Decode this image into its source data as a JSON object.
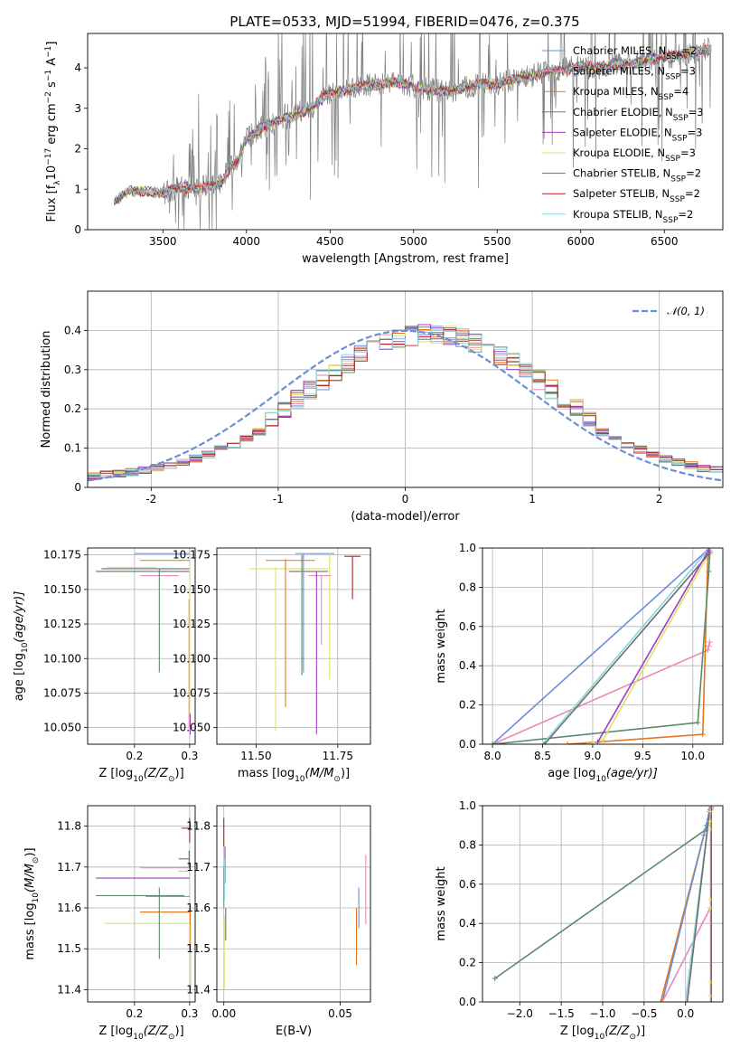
{
  "title": "PLATE=0533, MJD=51994, FIBERID=0476, z=0.375",
  "colors": {
    "chabrier_miles": "#6a8fd6",
    "salpeter_miles": "#e889b8",
    "kroupa_miles": "#e8741a",
    "chabrier_elodie": "#5c8a68",
    "salpeter_elodie": "#a23bc2",
    "kroupa_elodie": "#d9e466",
    "chabrier_stelib": "#6e6e6e",
    "salpeter_stelib": "#b81d24",
    "kroupa_stelib": "#89d7e0",
    "data": "#808080",
    "normal": "#6a8fd6"
  },
  "chart_data": [
    {
      "id": "spectrum",
      "type": "line",
      "title": "PLATE=0533, MJD=51994, FIBERID=0476, z=0.375",
      "xlabel": "wavelength [Angstrom, rest frame]",
      "ylabel_parts": [
        "Flux [f",
        "λ",
        "10",
        "−17",
        " erg cm",
        "−2",
        " s",
        "−1",
        " A",
        "−1",
        "]"
      ],
      "xlim": [
        3050,
        6850
      ],
      "ylim": [
        0,
        4.85
      ],
      "xticks": [
        3500,
        4000,
        4500,
        5000,
        5500,
        6000,
        6500
      ],
      "yticks": [
        0,
        1,
        2,
        3,
        4
      ],
      "grid": false,
      "legend_position": "top-right",
      "data_range": [
        3210,
        6780
      ],
      "continuum": {
        "x": [
          3210,
          3300,
          3400,
          3500,
          3600,
          3700,
          3800,
          3850,
          3900,
          3950,
          4000,
          4100,
          4200,
          4300,
          4400,
          4500,
          4600,
          4700,
          4800,
          4900,
          5000,
          5100,
          5200,
          5300,
          5400,
          5500,
          5600,
          5700,
          5800,
          5900,
          6000,
          6100,
          6200,
          6300,
          6400,
          6500,
          6600,
          6700,
          6780
        ],
        "y": [
          0.7,
          0.95,
          0.95,
          0.9,
          1.05,
          1.0,
          1.1,
          1.15,
          1.55,
          1.7,
          2.25,
          2.55,
          2.7,
          2.85,
          3.05,
          3.4,
          3.45,
          3.55,
          3.6,
          3.65,
          3.55,
          3.45,
          3.4,
          3.5,
          3.6,
          3.6,
          3.7,
          3.8,
          3.9,
          3.95,
          4.05,
          4.0,
          4.1,
          4.1,
          4.2,
          4.25,
          4.3,
          4.4,
          4.45
        ]
      },
      "legend": [
        {
          "label": "Chabrier MILES, N",
          "sub": "SSP",
          "tail": "=2",
          "color": "#6a8fd6"
        },
        {
          "label": "Salpeter MILES, N",
          "sub": "SSP",
          "tail": "=3",
          "color": "#e889b8"
        },
        {
          "label": "Kroupa MILES, N",
          "sub": "SSP",
          "tail": "=4",
          "color": "#e8741a"
        },
        {
          "label": "Chabrier ELODIE, N",
          "sub": "SSP",
          "tail": "=3",
          "color": "#5c8a68"
        },
        {
          "label": "Salpeter ELODIE, N",
          "sub": "SSP",
          "tail": "=3",
          "color": "#a23bc2"
        },
        {
          "label": "Kroupa ELODIE, N",
          "sub": "SSP",
          "tail": "=3",
          "color": "#d9e466"
        },
        {
          "label": "Chabrier STELIB, N",
          "sub": "SSP",
          "tail": "=2",
          "color": "#6e6e6e"
        },
        {
          "label": "Salpeter STELIB, N",
          "sub": "SSP",
          "tail": "=2",
          "color": "#b81d24"
        },
        {
          "label": "Kroupa STELIB, N",
          "sub": "SSP",
          "tail": "=2",
          "color": "#89d7e0"
        }
      ]
    },
    {
      "id": "residuals",
      "type": "line",
      "xlabel": "(data-model)/error",
      "ylabel": "Normed distribution",
      "xlim": [
        -2.5,
        2.5
      ],
      "ylim": [
        0,
        0.5
      ],
      "xticks": [
        -2,
        -1,
        0,
        1,
        2
      ],
      "yticks": [
        0.0,
        0.1,
        0.2,
        0.3,
        0.4
      ],
      "grid": true,
      "legend_position": "top-right",
      "legend_label": "𝒩(0, 1)",
      "normal_mean": 0,
      "normal_sigma": 1,
      "bin_width": 0.1,
      "hist_template": [
        0.018,
        0.018,
        0.022,
        0.025,
        0.03,
        0.038,
        0.05,
        0.06,
        0.07,
        0.08,
        0.09,
        0.1,
        0.115,
        0.13,
        0.15,
        0.165,
        0.18,
        0.2,
        0.22,
        0.24,
        0.26,
        0.28,
        0.3,
        0.32,
        0.33,
        0.35,
        0.36,
        0.37,
        0.38,
        0.39,
        0.4,
        0.42,
        0.41,
        0.4,
        0.41,
        0.4,
        0.39,
        0.4,
        0.41,
        0.4,
        0.38,
        0.37,
        0.35,
        0.33,
        0.32,
        0.31,
        0.29,
        0.27,
        0.25,
        0.22,
        0.2,
        0.18,
        0.16,
        0.14,
        0.13,
        0.12,
        0.1,
        0.09,
        0.08,
        0.065,
        0.06,
        0.05,
        0.045,
        0.04,
        0.035,
        0.03,
        0.028,
        0.025,
        0.02,
        0.018,
        0.015,
        0.013,
        0.012,
        0.011,
        0.01,
        0.01,
        0.009,
        0.008,
        0.008,
        0.007,
        0.006,
        0.006,
        0.005,
        0.005,
        0.004,
        0.004,
        0.004,
        0.003,
        0.003,
        0.003
      ]
    },
    {
      "id": "z-age",
      "type": "scatter",
      "xlabel_parts": [
        "Z [log",
        "10",
        "(Z/Z",
        "⊙",
        ")]"
      ],
      "ylabel_parts": [
        "age  [log",
        "10",
        "(age/yr)]"
      ],
      "xlim": [
        0.115,
        0.31
      ],
      "ylim": [
        10.038,
        10.18
      ],
      "xticks": [
        0.2,
        0.3
      ],
      "xtick_labels": [
        "0.2",
        "0.3"
      ],
      "yticks": [
        10.05,
        10.075,
        10.1,
        10.125,
        10.15,
        10.175
      ],
      "ytick_labels": [
        "10.050",
        "10.075",
        "10.100",
        "10.125",
        "10.150",
        "10.175"
      ],
      "grid": true,
      "hbars": [
        {
          "color": "#6a8fd6",
          "x0": 0.2,
          "x1": 0.3,
          "y": 10.176
        },
        {
          "color": "#e8741a",
          "x0": 0.21,
          "x1": 0.3,
          "y": 10.171
        },
        {
          "color": "#6e6e6e",
          "x0": 0.14,
          "x1": 0.3,
          "y": 10.165
        },
        {
          "color": "#a23bc2",
          "x0": 0.13,
          "x1": 0.3,
          "y": 10.163
        },
        {
          "color": "#5c8a68",
          "x0": 0.13,
          "x1": 0.29,
          "y": 10.163
        },
        {
          "color": "#e889b8",
          "x0": 0.21,
          "x1": 0.28,
          "y": 10.16
        },
        {
          "color": "#d9e466",
          "x0": 0.15,
          "x1": 0.24,
          "y": 10.166
        }
      ],
      "vbars": [
        {
          "color": "#5c8a68",
          "x": 0.245,
          "y0": 10.09,
          "y1": 10.165
        },
        {
          "color": "#e8741a",
          "x": 0.299,
          "y0": 10.05,
          "y1": 10.143
        },
        {
          "color": "#d9e466",
          "x": 0.3,
          "y0": 10.05,
          "y1": 10.17
        },
        {
          "color": "#a23bc2",
          "x": 0.301,
          "y0": 10.045,
          "y1": 10.06
        }
      ]
    },
    {
      "id": "mass-age",
      "type": "scatter",
      "xlabel_parts": [
        "mass [log",
        "10",
        "(M/M",
        "⊙",
        ")]"
      ],
      "xlim": [
        11.38,
        11.85
      ],
      "ylim": [
        10.038,
        10.18
      ],
      "xticks": [
        11.5,
        11.75
      ],
      "xtick_labels": [
        "11.50",
        "11.75"
      ],
      "yticks": [
        10.05,
        10.075,
        10.1,
        10.125,
        10.15,
        10.175
      ],
      "ytick_labels": [
        "10.050",
        "10.075",
        "10.100",
        "10.125",
        "10.150",
        "10.175"
      ],
      "grid": true,
      "hbars": [
        {
          "color": "#6a8fd6",
          "x0": 11.62,
          "x1": 11.74,
          "y": 10.176
        },
        {
          "color": "#b81d24",
          "x0": 11.77,
          "x1": 11.82,
          "y": 10.174
        },
        {
          "color": "#e8741a",
          "x0": 11.53,
          "x1": 11.68,
          "y": 10.171
        },
        {
          "color": "#d9e466",
          "x0": 11.48,
          "x1": 11.72,
          "y": 10.165
        },
        {
          "color": "#6e6e6e",
          "x0": 11.6,
          "x1": 11.72,
          "y": 10.163
        },
        {
          "color": "#e889b8",
          "x0": 11.66,
          "x1": 11.73,
          "y": 10.16
        }
      ],
      "vbars": [
        {
          "color": "#e8741a",
          "x": 11.59,
          "y0": 10.065,
          "y1": 10.172
        },
        {
          "color": "#d9e466",
          "x": 11.56,
          "y0": 10.048,
          "y1": 10.166
        },
        {
          "color": "#5c8a68",
          "x": 11.64,
          "y0": 10.088,
          "y1": 10.175
        },
        {
          "color": "#6a8fd6",
          "x": 11.645,
          "y0": 10.09,
          "y1": 10.176
        },
        {
          "color": "#a23bc2",
          "x": 11.685,
          "y0": 10.045,
          "y1": 10.163
        },
        {
          "color": "#e889b8",
          "x": 11.7,
          "y0": 10.11,
          "y1": 10.16
        },
        {
          "color": "#d9e466",
          "x": 11.725,
          "y0": 10.085,
          "y1": 10.176
        },
        {
          "color": "#b81d24",
          "x": 11.795,
          "y0": 10.143,
          "y1": 10.174
        }
      ]
    },
    {
      "id": "age-weight",
      "type": "line",
      "xlabel_parts": [
        "age  [log",
        "10",
        "(age/yr)]"
      ],
      "ylabel": "mass weight",
      "xlim": [
        7.9,
        10.3
      ],
      "ylim": [
        0,
        1.0
      ],
      "xticks": [
        8.0,
        8.5,
        9.0,
        9.5,
        10.0
      ],
      "xtick_labels": [
        "8.0",
        "8.5",
        "9.0",
        "9.5",
        "10.0"
      ],
      "yticks": [
        0,
        0.2,
        0.4,
        0.6,
        0.8,
        1.0
      ],
      "ytick_labels": [
        "0.0",
        "0.2",
        "0.4",
        "0.6",
        "0.8",
        "1.0"
      ],
      "grid": true,
      "series": [
        {
          "color": "#6a8fd6",
          "x": [
            8.0,
            10.17
          ],
          "y": [
            0.0,
            1.0
          ]
        },
        {
          "color": "#e889b8",
          "x": [
            8.0,
            10.15,
            10.16,
            10.17
          ],
          "y": [
            0.0,
            0.48,
            0.5,
            0.52
          ]
        },
        {
          "color": "#e8741a",
          "x": [
            8.75,
            10.1,
            10.15,
            10.17
          ],
          "y": [
            0.0,
            0.05,
            0.95,
            0.98
          ]
        },
        {
          "color": "#5c8a68",
          "x": [
            8.0,
            10.05,
            10.16,
            10.17
          ],
          "y": [
            0.0,
            0.11,
            0.88,
            0.98
          ]
        },
        {
          "color": "#d9e466",
          "x": [
            8.95,
            9.1,
            10.16
          ],
          "y": [
            0.0,
            0.02,
            0.97
          ]
        },
        {
          "color": "#89d7e0",
          "x": [
            8.5,
            10.17
          ],
          "y": [
            0.0,
            1.0
          ]
        },
        {
          "color": "#6e6e6e",
          "x": [
            8.52,
            10.16
          ],
          "y": [
            0.0,
            0.97
          ]
        },
        {
          "color": "#a23bc2",
          "x": [
            9.05,
            10.16
          ],
          "y": [
            0.01,
            0.99
          ]
        }
      ]
    },
    {
      "id": "z-mass",
      "type": "scatter",
      "xlabel_parts": [
        "Z [log",
        "10",
        "(Z/Z",
        "⊙",
        ")]"
      ],
      "ylabel_parts": [
        "mass [log",
        "10",
        "(M/M",
        "⊙",
        ")]"
      ],
      "xlim": [
        0.115,
        0.31
      ],
      "ylim": [
        11.37,
        11.85
      ],
      "xticks": [
        0.2,
        0.3
      ],
      "xtick_labels": [
        "0.2",
        "0.3"
      ],
      "yticks": [
        11.4,
        11.5,
        11.6,
        11.7,
        11.8
      ],
      "ytick_labels": [
        "11.4",
        "11.5",
        "11.6",
        "11.7",
        "11.8"
      ],
      "grid": true,
      "hbars": [
        {
          "color": "#b81d24",
          "x0": 0.285,
          "x1": 0.3,
          "y": 11.795
        },
        {
          "color": "#6e6e6e",
          "x0": 0.28,
          "x1": 0.3,
          "y": 11.72
        },
        {
          "color": "#e889b8",
          "x0": 0.21,
          "x1": 0.3,
          "y": 11.698
        },
        {
          "color": "#89d7e0",
          "x0": 0.28,
          "x1": 0.3,
          "y": 11.69
        },
        {
          "color": "#a23bc2",
          "x0": 0.13,
          "x1": 0.3,
          "y": 11.673
        },
        {
          "color": "#5c8a68",
          "x0": 0.13,
          "x1": 0.29,
          "y": 11.63
        },
        {
          "color": "#6a8fd6",
          "x0": 0.22,
          "x1": 0.3,
          "y": 11.628
        },
        {
          "color": "#e8741a",
          "x0": 0.21,
          "x1": 0.3,
          "y": 11.59
        },
        {
          "color": "#d9e466",
          "x0": 0.145,
          "x1": 0.3,
          "y": 11.562
        }
      ],
      "vbars": [
        {
          "color": "#b81d24",
          "x": 0.3,
          "y0": 11.76,
          "y1": 11.82
        },
        {
          "color": "#6e6e6e",
          "x": 0.299,
          "y0": 11.7,
          "y1": 11.74
        },
        {
          "color": "#5c8a68",
          "x": 0.245,
          "y0": 11.475,
          "y1": 11.65
        },
        {
          "color": "#e8741a",
          "x": 0.301,
          "y0": 11.5,
          "y1": 11.6
        },
        {
          "color": "#d9e466",
          "x": 0.302,
          "y0": 11.4,
          "y1": 11.56
        }
      ]
    },
    {
      "id": "ebv-mass",
      "type": "scatter",
      "xlabel": "E(B-V)",
      "xlim": [
        -0.003,
        0.063
      ],
      "ylim": [
        11.37,
        11.85
      ],
      "xticks": [
        0.0,
        0.05
      ],
      "xtick_labels": [
        "0.00",
        "0.05"
      ],
      "yticks": [
        11.4,
        11.5,
        11.6,
        11.7,
        11.8
      ],
      "ytick_labels": [
        "11.4",
        "11.5",
        "11.6",
        "11.7",
        "11.8"
      ],
      "grid": true,
      "vbars": [
        {
          "color": "#b81d24",
          "x": 0.0,
          "y0": 11.75,
          "y1": 11.82
        },
        {
          "color": "#a23bc2",
          "x": 0.0005,
          "y0": 11.66,
          "y1": 11.75
        },
        {
          "color": "#6a8fd6",
          "x": 0.0,
          "y0": 11.6,
          "y1": 11.7
        },
        {
          "color": "#89d7e0",
          "x": 0.0003,
          "y0": 11.62,
          "y1": 11.72
        },
        {
          "color": "#d9e466",
          "x": 0.0002,
          "y0": 11.4,
          "y1": 11.58
        },
        {
          "color": "#6e6e6e",
          "x": 0.0008,
          "y0": 11.52,
          "y1": 11.6
        },
        {
          "color": "#e8741a",
          "x": 0.057,
          "y0": 11.46,
          "y1": 11.6
        },
        {
          "color": "#6a8fd6",
          "x": 0.058,
          "y0": 11.55,
          "y1": 11.65
        },
        {
          "color": "#e889b8",
          "x": 0.061,
          "y0": 11.56,
          "y1": 11.73
        }
      ]
    },
    {
      "id": "z-weight",
      "type": "line",
      "xlabel_parts": [
        "Z [log",
        "10",
        "(Z/Z",
        "⊙",
        ")]"
      ],
      "ylabel": "mass weight",
      "xlim": [
        -2.45,
        0.45
      ],
      "ylim": [
        0,
        1.0
      ],
      "xticks": [
        -2.0,
        -1.5,
        -1.0,
        -0.5,
        0.0
      ],
      "xtick_labels": [
        "−2.0",
        "−1.5",
        "−1.0",
        "−0.5",
        "0.0"
      ],
      "yticks": [
        0,
        0.2,
        0.4,
        0.6,
        0.8,
        1.0
      ],
      "ytick_labels": [
        "0.0",
        "0.2",
        "0.4",
        "0.6",
        "0.8",
        "1.0"
      ],
      "grid": true,
      "series": [
        {
          "color": "#5c8a68",
          "x": [
            -2.3,
            0.25,
            0.3
          ],
          "y": [
            0.12,
            0.88,
            0.98
          ]
        },
        {
          "color": "#e8741a",
          "x": [
            -0.3,
            0.22,
            0.3
          ],
          "y": [
            0.0,
            0.85,
            0.98
          ]
        },
        {
          "color": "#6a8fd6",
          "x": [
            -0.28,
            0.25,
            0.3
          ],
          "y": [
            0.0,
            0.9,
            1.0
          ]
        },
        {
          "color": "#e889b8",
          "x": [
            -0.28,
            0.3
          ],
          "y": [
            0.0,
            0.48
          ]
        },
        {
          "color": "#89d7e0",
          "x": [
            0.0,
            0.3
          ],
          "y": [
            0.0,
            1.0
          ]
        },
        {
          "color": "#6e6e6e",
          "x": [
            0.02,
            0.29
          ],
          "y": [
            0.0,
            0.97
          ]
        },
        {
          "color": "#d9e466",
          "x": [
            0.3,
            0.3
          ],
          "y": [
            0.0,
            1.0
          ]
        },
        {
          "color": "#a23bc2",
          "x": [
            0.31,
            0.31
          ],
          "y": [
            0.0,
            0.99
          ]
        }
      ],
      "markers": [
        {
          "color": "#d9e466",
          "x": 0.3,
          "y": [
            0.03,
            0.1,
            0.48,
            0.52,
            0.88,
            0.92,
            0.97
          ]
        }
      ]
    }
  ]
}
